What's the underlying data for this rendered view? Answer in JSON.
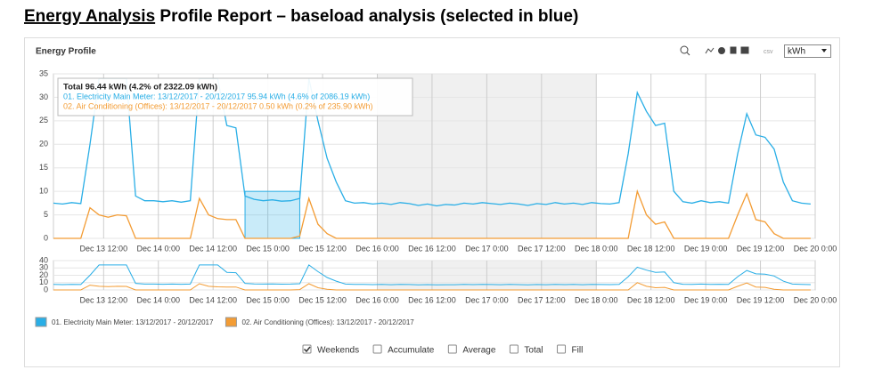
{
  "header": {
    "title_underlined": "Energy Analysis",
    "title_rest": "Profile Report – baseload analysis (selected in blue)"
  },
  "panel": {
    "title": "Energy Profile",
    "export": "csv",
    "unit": "kWh"
  },
  "chart_data": {
    "type": "line",
    "x": [
      1,
      3,
      5,
      7,
      9,
      11,
      13,
      15,
      17,
      19,
      21,
      23,
      25,
      27,
      29,
      31,
      33,
      35,
      37,
      39,
      41,
      43,
      45,
      47,
      49,
      51,
      53,
      55,
      57,
      59,
      61,
      63,
      65,
      67,
      69,
      71,
      73,
      75,
      77,
      79,
      81,
      83,
      85,
      87,
      89,
      91,
      93,
      95,
      97,
      99,
      101,
      103,
      105,
      107,
      109,
      111,
      113,
      115,
      117,
      119,
      121,
      123,
      125,
      127,
      129,
      131,
      133,
      135,
      137,
      139,
      141,
      143,
      145,
      147,
      149,
      151,
      153,
      155,
      157,
      159,
      161,
      163,
      165,
      167
    ],
    "series": [
      {
        "name": "01. Electricity Main Meter: 13/12/2017 - 20/12/2017",
        "color": "#29aee6",
        "values": [
          7.5,
          7.3,
          7.6,
          7.4,
          20,
          34,
          34,
          34,
          34,
          9,
          8,
          8,
          7.8,
          8,
          7.7,
          8,
          34,
          34,
          34,
          24,
          23.5,
          9,
          8.3,
          8,
          8.2,
          7.9,
          8,
          8.5,
          34,
          25,
          17,
          12,
          8,
          7.5,
          7.6,
          7.3,
          7.5,
          7.2,
          7.6,
          7.4,
          7,
          7.3,
          6.9,
          7.2,
          7.1,
          7.5,
          7.3,
          7.6,
          7.4,
          7.2,
          7.5,
          7.3,
          7,
          7.4,
          7.2,
          7.6,
          7.3,
          7.5,
          7.2,
          7.6,
          7.4,
          7.3,
          7.6,
          18,
          31,
          27,
          24,
          24.5,
          10,
          7.8,
          7.5,
          8,
          7.6,
          7.8,
          7.5,
          18,
          26.5,
          22,
          21.5,
          19,
          12,
          8,
          7.5,
          7.3
        ]
      },
      {
        "name": "02. Air Conditioning (Offices): 13/12/2017 - 20/12/2017",
        "color": "#f39c34",
        "values": [
          0,
          0,
          0,
          0,
          6.5,
          5,
          4.5,
          5,
          4.8,
          0,
          0,
          0,
          0,
          0,
          0,
          0,
          8.5,
          5,
          4.2,
          4,
          4,
          0,
          0,
          0,
          0,
          0,
          0,
          0.5,
          8.5,
          3,
          1,
          0,
          0,
          0,
          0,
          0,
          0,
          0,
          0,
          0,
          0,
          0,
          0,
          0,
          0,
          0,
          0,
          0,
          0,
          0,
          0,
          0,
          0,
          0,
          0,
          0,
          0,
          0,
          0,
          0,
          0,
          0,
          0,
          0,
          10,
          5,
          3,
          3.5,
          0,
          0,
          0,
          0,
          0,
          0,
          0,
          5,
          9.5,
          4,
          3.5,
          1,
          0,
          0,
          0,
          0
        ]
      }
    ],
    "xlim": [
      1,
      168
    ],
    "ylim": [
      0,
      35
    ],
    "yticks": [
      0,
      5,
      10,
      15,
      20,
      25,
      30,
      35
    ],
    "xticks": [
      {
        "value": 12,
        "label": "Dec 13 12:00"
      },
      {
        "value": 24,
        "label": "Dec 14 0:00"
      },
      {
        "value": 36,
        "label": "Dec 14 12:00"
      },
      {
        "value": 48,
        "label": "Dec 15 0:00"
      },
      {
        "value": 60,
        "label": "Dec 15 12:00"
      },
      {
        "value": 72,
        "label": "Dec 16 0:00"
      },
      {
        "value": 84,
        "label": "Dec 16 12:00"
      },
      {
        "value": 96,
        "label": "Dec 17 0:00"
      },
      {
        "value": 108,
        "label": "Dec 17 12:00"
      },
      {
        "value": 120,
        "label": "Dec 18 0:00"
      },
      {
        "value": 132,
        "label": "Dec 18 12:00"
      },
      {
        "value": 144,
        "label": "Dec 19 0:00"
      },
      {
        "value": 156,
        "label": "Dec 19 12:00"
      },
      {
        "value": 168,
        "label": "Dec 20 0:00"
      }
    ],
    "weekend": [
      72,
      120
    ],
    "selection": {
      "x": [
        43,
        55
      ],
      "y": [
        0,
        10
      ]
    },
    "tooltip": [
      "Total 96.44 kWh (4.2% of 2322.09 kWh)",
      "01. Electricity Main Meter: 13/12/2017 - 20/12/2017 95.94 kWh (4.6% of 2086.19 kWh)",
      "02. Air Conditioning (Offices): 13/12/2017 - 20/12/2017 0.50 kWh (0.2% of 235.90 kWh)"
    ],
    "navigator": {
      "ylim": [
        0,
        40
      ],
      "yticks": [
        0,
        10,
        20,
        30,
        40
      ]
    }
  },
  "controls": [
    {
      "label": "Weekends",
      "checked": true
    },
    {
      "label": "Accumulate",
      "checked": false
    },
    {
      "label": "Average",
      "checked": false
    },
    {
      "label": "Total",
      "checked": false
    },
    {
      "label": "Fill",
      "checked": false
    }
  ]
}
